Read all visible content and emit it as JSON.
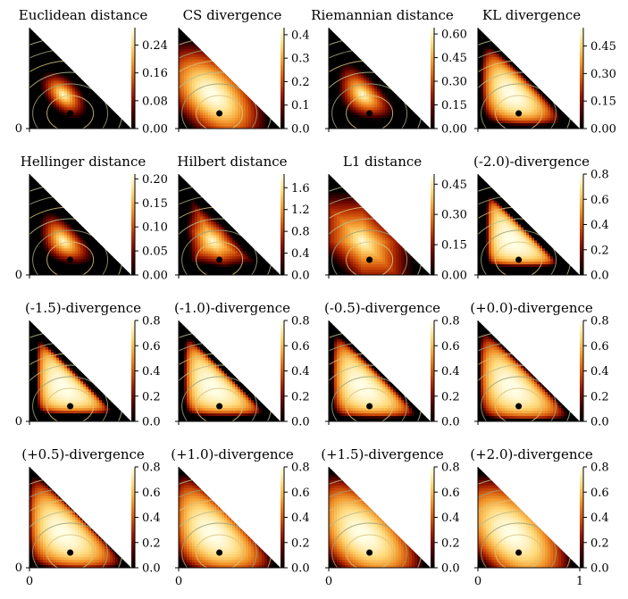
{
  "figure": {
    "cmap_stops": [
      "#000000",
      "#4a0000",
      "#9a1a00",
      "#d4550c",
      "#f29a2e",
      "#ffd97a",
      "#ffffe8"
    ],
    "contour_colors": [
      "#b7bd8c",
      "#d8c27a",
      "#9aa07a"
    ],
    "marker_color": "#000000",
    "x_tick_labels": [
      "0",
      "1"
    ],
    "y_tick_label": "0"
  },
  "chart_data": [
    {
      "type": "heatmap",
      "title": "Euclidean distance",
      "colorbar_ticks": [
        0.0,
        0.08,
        0.16,
        0.24
      ],
      "colorbar_labels": [
        "0.00",
        "0.08",
        "0.16",
        "0.24"
      ],
      "vmax": 0.29,
      "marker": [
        0.4,
        0.2
      ],
      "style": "euclid"
    },
    {
      "type": "heatmap",
      "title": "CS divergence",
      "colorbar_ticks": [
        0.0,
        0.1,
        0.2,
        0.3,
        0.4
      ],
      "colorbar_labels": [
        "0.0",
        "0.1",
        "0.2",
        "0.3",
        "0.4"
      ],
      "vmax": 0.43,
      "marker": [
        0.4,
        0.2
      ],
      "style": "cs"
    },
    {
      "type": "heatmap",
      "title": "Riemannian distance",
      "colorbar_ticks": [
        0.0,
        0.15,
        0.3,
        0.45,
        0.6
      ],
      "colorbar_labels": [
        "0.00",
        "0.15",
        "0.30",
        "0.45",
        "0.60"
      ],
      "vmax": 0.64,
      "marker": [
        0.4,
        0.2
      ],
      "style": "riem"
    },
    {
      "type": "heatmap",
      "title": "KL divergence",
      "colorbar_ticks": [
        0.0,
        0.15,
        0.3,
        0.45
      ],
      "colorbar_labels": [
        "0.00",
        "0.15",
        "0.30",
        "0.45"
      ],
      "vmax": 0.55,
      "marker": [
        0.4,
        0.2
      ],
      "style": "kl"
    },
    {
      "type": "heatmap",
      "title": "Hellinger distance",
      "colorbar_ticks": [
        0.0,
        0.05,
        0.1,
        0.15,
        0.2
      ],
      "colorbar_labels": [
        "0.00",
        "0.05",
        "0.10",
        "0.15",
        "0.20"
      ],
      "vmax": 0.21,
      "marker": [
        0.4,
        0.2
      ],
      "style": "hell"
    },
    {
      "type": "heatmap",
      "title": "Hilbert distance",
      "colorbar_ticks": [
        0.0,
        0.4,
        0.8,
        1.2,
        1.6
      ],
      "colorbar_labels": [
        "0.0",
        "0.4",
        "0.8",
        "1.2",
        "1.6"
      ],
      "vmax": 1.85,
      "marker": [
        0.4,
        0.2
      ],
      "style": "hilbert"
    },
    {
      "type": "heatmap",
      "title": "L1 distance",
      "colorbar_ticks": [
        0.0,
        0.15,
        0.3,
        0.45
      ],
      "colorbar_labels": [
        "0.00",
        "0.15",
        "0.30",
        "0.45"
      ],
      "vmax": 0.5,
      "marker": [
        0.4,
        0.2
      ],
      "style": "l1"
    },
    {
      "type": "heatmap",
      "title": "(-2.0)-divergence",
      "colorbar_ticks": [
        0.0,
        0.2,
        0.4,
        0.6,
        0.8
      ],
      "colorbar_labels": [
        "0.0",
        "0.2",
        "0.4",
        "0.6",
        "0.8"
      ],
      "vmax": 0.8,
      "marker": [
        0.4,
        0.2
      ],
      "style": "alpha",
      "alpha": -2.0
    },
    {
      "type": "heatmap",
      "title": "(-1.5)-divergence",
      "colorbar_ticks": [
        0.0,
        0.2,
        0.4,
        0.6,
        0.8
      ],
      "colorbar_labels": [
        "0.0",
        "0.2",
        "0.4",
        "0.6",
        "0.8"
      ],
      "vmax": 0.8,
      "marker": [
        0.4,
        0.2
      ],
      "style": "alpha",
      "alpha": -1.5
    },
    {
      "type": "heatmap",
      "title": "(-1.0)-divergence",
      "colorbar_ticks": [
        0.0,
        0.2,
        0.4,
        0.6,
        0.8
      ],
      "colorbar_labels": [
        "0.0",
        "0.2",
        "0.4",
        "0.6",
        "0.8"
      ],
      "vmax": 0.8,
      "marker": [
        0.4,
        0.2
      ],
      "style": "alpha",
      "alpha": -1.0
    },
    {
      "type": "heatmap",
      "title": "(-0.5)-divergence",
      "colorbar_ticks": [
        0.0,
        0.2,
        0.4,
        0.6,
        0.8
      ],
      "colorbar_labels": [
        "0.0",
        "0.2",
        "0.4",
        "0.6",
        "0.8"
      ],
      "vmax": 0.8,
      "marker": [
        0.4,
        0.2
      ],
      "style": "alpha",
      "alpha": -0.5
    },
    {
      "type": "heatmap",
      "title": "(+0.0)-divergence",
      "colorbar_ticks": [
        0.0,
        0.2,
        0.4,
        0.6,
        0.8
      ],
      "colorbar_labels": [
        "0.0",
        "0.2",
        "0.4",
        "0.6",
        "0.8"
      ],
      "vmax": 0.8,
      "marker": [
        0.4,
        0.2
      ],
      "style": "alpha",
      "alpha": 0.0
    },
    {
      "type": "heatmap",
      "title": "(+0.5)-divergence",
      "colorbar_ticks": [
        0.0,
        0.2,
        0.4,
        0.6,
        0.8
      ],
      "colorbar_labels": [
        "0.0",
        "0.2",
        "0.4",
        "0.6",
        "0.8"
      ],
      "vmax": 0.8,
      "marker": [
        0.4,
        0.2
      ],
      "style": "alpha",
      "alpha": 0.5
    },
    {
      "type": "heatmap",
      "title": "(+1.0)-divergence",
      "colorbar_ticks": [
        0.0,
        0.2,
        0.4,
        0.6,
        0.8
      ],
      "colorbar_labels": [
        "0.0",
        "0.2",
        "0.4",
        "0.6",
        "0.8"
      ],
      "vmax": 0.8,
      "marker": [
        0.4,
        0.2
      ],
      "style": "alpha",
      "alpha": 1.0
    },
    {
      "type": "heatmap",
      "title": "(+1.5)-divergence",
      "colorbar_ticks": [
        0.0,
        0.2,
        0.4,
        0.6,
        0.8
      ],
      "colorbar_labels": [
        "0.0",
        "0.2",
        "0.4",
        "0.6",
        "0.8"
      ],
      "vmax": 0.8,
      "marker": [
        0.4,
        0.2
      ],
      "style": "alpha",
      "alpha": 1.5
    },
    {
      "type": "heatmap",
      "title": "(+2.0)-divergence",
      "colorbar_ticks": [
        0.0,
        0.2,
        0.4,
        0.6,
        0.8
      ],
      "colorbar_labels": [
        "0.0",
        "0.2",
        "0.4",
        "0.6",
        "0.8"
      ],
      "vmax": 0.8,
      "marker": [
        0.4,
        0.2
      ],
      "style": "alpha",
      "alpha": 2.0
    }
  ]
}
